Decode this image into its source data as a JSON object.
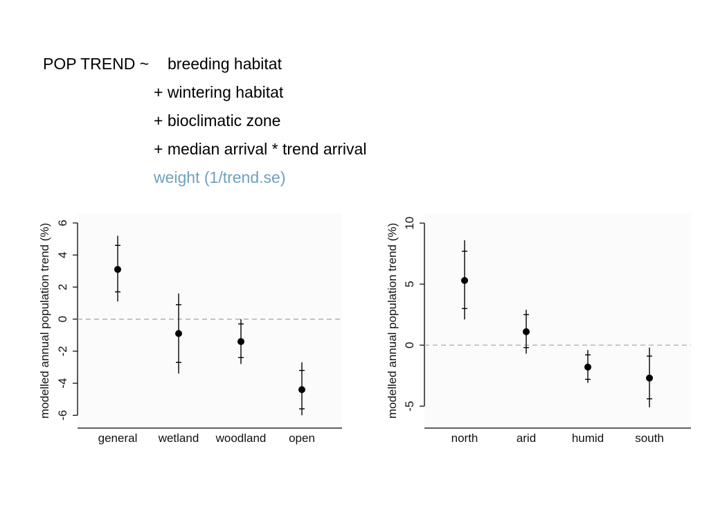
{
  "formula": {
    "prefix": "POP TREND ~",
    "terms": [
      "breeding habitat",
      "+ wintering habitat",
      "+ bioclimatic zone",
      "+ median arrival * trend arrival"
    ],
    "weight": "weight (1/trend.se)",
    "weight_color": "#6f9fbf"
  },
  "chart_data": [
    {
      "type": "scatter",
      "subtype": "point-with-error-bars",
      "title": "",
      "xlabel": "",
      "ylabel": "modelled annual population trend (%)",
      "categories": [
        "general",
        "wetland",
        "woodland",
        "open"
      ],
      "estimates": [
        3.1,
        -0.9,
        -1.4,
        -4.4
      ],
      "inner_interval": [
        [
          1.7,
          4.6
        ],
        [
          -2.7,
          0.9
        ],
        [
          -2.4,
          -0.3
        ],
        [
          -5.6,
          -3.2
        ]
      ],
      "outer_interval": [
        [
          1.1,
          5.2
        ],
        [
          -3.4,
          1.6
        ],
        [
          -2.8,
          0.0
        ],
        [
          -6.0,
          -2.7
        ]
      ],
      "ylim": [
        -6.8,
        6.6
      ],
      "yticks": [
        -6,
        -4,
        -2,
        0,
        2,
        4,
        6
      ],
      "ytick_labels": [
        "-6",
        "-4",
        "-2",
        "0",
        "2",
        "4",
        "6"
      ],
      "reference_line": 0
    },
    {
      "type": "scatter",
      "subtype": "point-with-error-bars",
      "title": "",
      "xlabel": "",
      "ylabel": "modelled annual population trend (%)",
      "categories": [
        "north",
        "arid",
        "humid",
        "south"
      ],
      "estimates": [
        5.3,
        1.1,
        -1.8,
        -2.7
      ],
      "inner_interval": [
        [
          3.0,
          7.7
        ],
        [
          -0.2,
          2.5
        ],
        [
          -2.8,
          -0.8
        ],
        [
          -4.4,
          -0.9
        ]
      ],
      "outer_interval": [
        [
          2.1,
          8.6
        ],
        [
          -0.7,
          2.9
        ],
        [
          -3.1,
          -0.4
        ],
        [
          -5.1,
          -0.2
        ]
      ],
      "ylim": [
        -6.8,
        10.8
      ],
      "yticks": [
        -5,
        0,
        5,
        10
      ],
      "ytick_labels": [
        "-5",
        "0",
        "5",
        "10"
      ],
      "reference_line": 0
    }
  ]
}
